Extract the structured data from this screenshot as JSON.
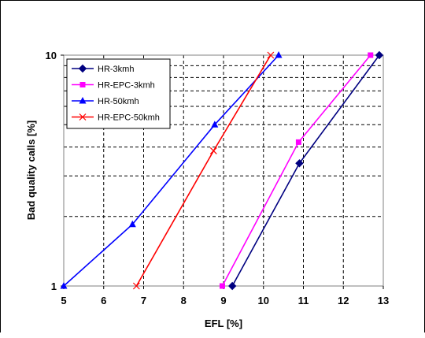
{
  "chart_data": {
    "type": "line",
    "xlabel": "EFL [%]",
    "ylabel": "Bad quality calls [%]",
    "xlim": [
      5,
      13
    ],
    "ylim": [
      1,
      10
    ],
    "yscale": "log",
    "x_ticks": [
      "5",
      "6",
      "7",
      "8",
      "9",
      "10",
      "11",
      "12",
      "13"
    ],
    "y_ticks": [
      "1",
      "10"
    ],
    "grid": "dashed",
    "legend_position": "top-left",
    "series": [
      {
        "name": "HR-3kmh",
        "color": "#000080",
        "marker": "diamond",
        "x": [
          9.22,
          10.9,
          12.9
        ],
        "y": [
          1.0,
          3.4,
          10.0
        ]
      },
      {
        "name": "HR-EPC-3kmh",
        "color": "#ff00ff",
        "marker": "square",
        "x": [
          8.97,
          10.88,
          12.68
        ],
        "y": [
          1.0,
          4.2,
          10.0
        ]
      },
      {
        "name": "HR-50kmh",
        "color": "#0000ff",
        "marker": "triangle",
        "x": [
          5.0,
          6.72,
          8.78,
          10.38
        ],
        "y": [
          1.0,
          1.85,
          5.0,
          10.0
        ]
      },
      {
        "name": "HR-EPC-50kmh",
        "color": "#ff0000",
        "marker": "x",
        "x": [
          6.82,
          8.75,
          10.18
        ],
        "y": [
          1.0,
          3.85,
          10.0
        ]
      }
    ]
  }
}
